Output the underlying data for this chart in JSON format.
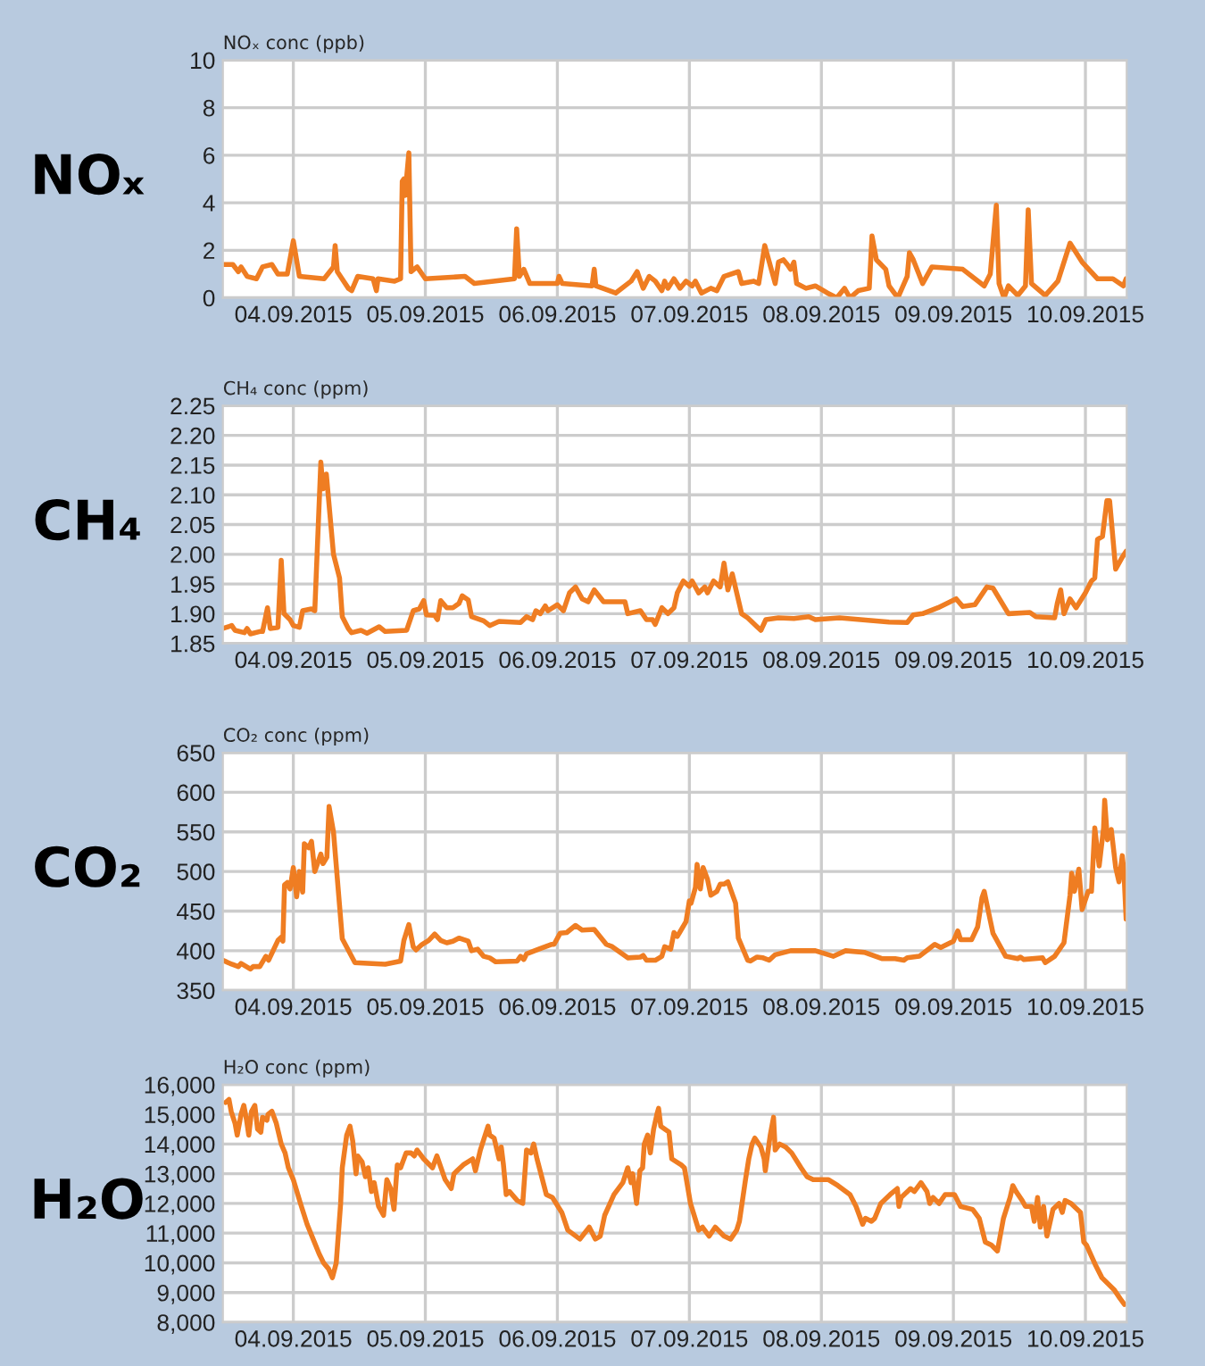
{
  "chart_data": [
    {
      "type": "line",
      "title": "NOₓ",
      "ylabel": "NOₓ conc (ppb)",
      "grid": true,
      "color": "#ef7d22",
      "x": [
        "2015-09-03T11:12",
        "2015-09-03T13:00",
        "2015-09-03T14:00",
        "2015-09-03T14:30",
        "2015-09-03T15:36",
        "2015-09-03T17:18",
        "2015-09-03T18:24",
        "2015-09-03T20:06",
        "2015-09-03T21:12",
        "2015-09-03T22:54",
        "2015-09-04T00:00",
        "2015-09-04T01:06",
        "2015-09-04T05:36",
        "2015-09-04T07:18",
        "2015-09-04T07:36",
        "2015-09-04T08:00",
        "2015-09-04T10:00",
        "2015-09-04T10:36",
        "2015-09-04T11:42",
        "2015-09-04T14:30",
        "2015-09-04T15:06",
        "2015-09-04T15:24",
        "2015-09-04T18:24",
        "2015-09-04T19:30",
        "2015-09-04T19:48",
        "2015-09-04T20:06",
        "2015-09-04T20:18",
        "2015-09-04T21:00",
        "2015-09-04T21:24",
        "2015-09-04T22:30",
        "2015-09-05T00:00",
        "2015-09-05T07:12",
        "2015-09-05T08:54",
        "2015-09-05T16:12",
        "2015-09-05T16:36",
        "2015-09-05T17:06",
        "2015-09-05T17:54",
        "2015-09-05T19:00",
        "2015-09-06T00:00",
        "2015-09-06T00:18",
        "2015-09-06T00:54",
        "2015-09-06T06:18",
        "2015-09-06T06:42",
        "2015-09-06T07:00",
        "2015-09-06T10:36",
        "2015-09-06T13:24",
        "2015-09-06T14:30",
        "2015-09-06T15:36",
        "2015-09-06T16:42",
        "2015-09-06T17:48",
        "2015-09-06T19:00",
        "2015-09-06T19:30",
        "2015-09-06T20:06",
        "2015-09-06T21:12",
        "2015-09-06T22:18",
        "2015-09-06T23:24",
        "2015-09-07T00:30",
        "2015-09-07T01:06",
        "2015-09-07T02:12",
        "2015-09-07T03:54",
        "2015-09-07T05:00",
        "2015-09-07T06:18",
        "2015-09-07T08:54",
        "2015-09-07T09:30",
        "2015-09-07T11:42",
        "2015-09-07T12:36",
        "2015-09-07T13:42",
        "2015-09-07T15:36",
        "2015-09-07T16:12",
        "2015-09-07T17:06",
        "2015-09-07T17:48",
        "2015-09-07T18:24",
        "2015-09-07T19:00",
        "2015-09-07T19:30",
        "2015-09-07T21:12",
        "2015-09-07T22:54",
        "2015-09-08T01:06",
        "2015-09-08T02:48",
        "2015-09-08T04:12",
        "2015-09-08T05:12",
        "2015-09-08T06:42",
        "2015-09-08T08:42",
        "2015-09-08T09:12",
        "2015-09-08T10:00",
        "2015-09-08T11:42",
        "2015-09-08T12:18",
        "2015-09-08T13:54",
        "2015-09-08T15:36",
        "2015-09-08T16:00",
        "2015-09-08T16:42",
        "2015-09-08T18:24",
        "2015-09-08T20:06",
        "2015-09-09T01:42",
        "2015-09-09T05:36",
        "2015-09-09T06:42",
        "2015-09-09T07:48",
        "2015-09-09T08:18",
        "2015-09-09T09:12",
        "2015-09-09T10:00",
        "2015-09-09T11:42",
        "2015-09-09T13:06",
        "2015-09-09T13:36",
        "2015-09-09T14:12",
        "2015-09-09T16:42",
        "2015-09-09T19:00",
        "2015-09-09T21:12",
        "2015-09-09T23:24",
        "2015-09-10T02:12",
        "2015-09-10T05:00",
        "2015-09-10T06:54",
        "2015-09-10T07:24"
      ],
      "values": [
        1.4,
        1.4,
        1.1,
        1.3,
        0.9,
        0.8,
        1.3,
        1.4,
        1.0,
        1.0,
        2.4,
        0.9,
        0.8,
        1.3,
        2.2,
        1.1,
        0.4,
        0.3,
        0.9,
        0.8,
        0.3,
        0.8,
        0.7,
        0.8,
        4.9,
        5.0,
        4.3,
        6.1,
        1.1,
        1.3,
        0.8,
        0.9,
        0.6,
        0.8,
        2.9,
        0.9,
        1.2,
        0.6,
        0.6,
        0.9,
        0.6,
        0.5,
        1.2,
        0.5,
        0.2,
        0.7,
        1.1,
        0.4,
        0.9,
        0.7,
        0.3,
        0.7,
        0.4,
        0.8,
        0.4,
        0.7,
        0.5,
        0.7,
        0.2,
        0.4,
        0.3,
        0.9,
        1.1,
        0.6,
        0.7,
        0.6,
        2.2,
        0.6,
        1.5,
        1.6,
        1.4,
        1.2,
        1.5,
        0.6,
        0.4,
        0.5,
        0.2,
        0.0,
        0.4,
        0.0,
        0.3,
        0.4,
        2.6,
        1.6,
        1.2,
        0.5,
        0.0,
        0.9,
        1.9,
        1.6,
        0.6,
        1.3,
        1.2,
        0.5,
        1.0,
        3.9,
        0.6,
        0.0,
        0.5,
        0.1,
        0.5,
        3.7,
        0.6,
        0.1,
        0.7,
        2.3,
        1.5,
        0.8,
        0.8,
        0.5,
        0.8
      ],
      "xlim": [
        "2015-09-03T11:12",
        "2015-09-10T07:30"
      ],
      "xticks": [
        {
          "value": "2015-09-04",
          "label": "04.09.2015"
        },
        {
          "value": "2015-09-05",
          "label": "05.09.2015"
        },
        {
          "value": "2015-09-06",
          "label": "06.09.2015"
        },
        {
          "value": "2015-09-07",
          "label": "07.09.2015"
        },
        {
          "value": "2015-09-08",
          "label": "08.09.2015"
        },
        {
          "value": "2015-09-09",
          "label": "09.09.2015"
        },
        {
          "value": "2015-09-10",
          "label": "10.09.2015"
        }
      ],
      "ylim": [
        0,
        10
      ],
      "yticks": [
        0,
        2,
        4,
        6,
        8,
        10
      ]
    },
    {
      "type": "line",
      "title": "CH₄",
      "ylabel": "CH₄ conc (ppm)",
      "grid": true,
      "color": "#ef7d22",
      "x": [
        "2015-09-03T11:12",
        "2015-09-03T12:48",
        "2015-09-03T13:24",
        "2015-09-03T15:06",
        "2015-09-03T15:36",
        "2015-09-03T16:12",
        "2015-09-03T17:54",
        "2015-09-03T18:24",
        "2015-09-03T19:18",
        "2015-09-03T19:48",
        "2015-09-03T21:12",
        "2015-09-03T21:48",
        "2015-09-03T22:18",
        "2015-09-03T23:24",
        "2015-09-04T00:00",
        "2015-09-04T01:06",
        "2015-09-04T01:42",
        "2015-09-04T03:18",
        "2015-09-04T03:54",
        "2015-09-04T05:00",
        "2015-09-04T05:24",
        "2015-09-04T06:00",
        "2015-09-04T07:18",
        "2015-09-04T08:24",
        "2015-09-04T08:54",
        "2015-09-04T10:00",
        "2015-09-04T10:36",
        "2015-09-04T12:18",
        "2015-09-04T13:24",
        "2015-09-04T15:36",
        "2015-09-04T16:42",
        "2015-09-04T20:36",
        "2015-09-04T21:48",
        "2015-09-04T22:54",
        "2015-09-04T23:42",
        "2015-09-05T00:12",
        "2015-09-05T01:42",
        "2015-09-05T02:12",
        "2015-09-05T02:48",
        "2015-09-05T03:54",
        "2015-09-05T05:00",
        "2015-09-05T06:06",
        "2015-09-05T06:42",
        "2015-09-05T07:48",
        "2015-09-05T08:24",
        "2015-09-05T10:36",
        "2015-09-05T11:42",
        "2015-09-05T13:24",
        "2015-09-05T17:18",
        "2015-09-05T18:24",
        "2015-09-05T19:30",
        "2015-09-05T20:06",
        "2015-09-05T20:54",
        "2015-09-05T21:48",
        "2015-09-05T22:18",
        "2015-09-06T00:00",
        "2015-09-06T01:06",
        "2015-09-06T02:12",
        "2015-09-06T03:18",
        "2015-09-06T04:30",
        "2015-09-06T05:36",
        "2015-09-06T06:42",
        "2015-09-06T08:24",
        "2015-09-06T12:18",
        "2015-09-06T12:48",
        "2015-09-06T15:06",
        "2015-09-06T16:12",
        "2015-09-06T17:18",
        "2015-09-06T17:48",
        "2015-09-06T19:00",
        "2015-09-06T20:06",
        "2015-09-06T21:12",
        "2015-09-06T21:48",
        "2015-09-06T22:54",
        "2015-09-07T00:00",
        "2015-09-07T00:30",
        "2015-09-07T01:42",
        "2015-09-07T02:48",
        "2015-09-07T03:18",
        "2015-09-07T04:24",
        "2015-09-07T05:36",
        "2015-09-07T06:18",
        "2015-09-07T07:00",
        "2015-09-07T07:48",
        "2015-09-07T09:30",
        "2015-09-07T10:36",
        "2015-09-07T12:18",
        "2015-09-07T13:00",
        "2015-09-07T13:54",
        "2015-09-07T16:12",
        "2015-09-07T19:00",
        "2015-09-07T21:42",
        "2015-09-07T22:54",
        "2015-09-08T03:18",
        "2015-09-08T12:18",
        "2015-09-08T15:36",
        "2015-09-08T16:42",
        "2015-09-08T18:24",
        "2015-09-08T21:12",
        "2015-09-09T00:30",
        "2015-09-09T01:42",
        "2015-09-09T03:54",
        "2015-09-09T06:06",
        "2015-09-09T07:12",
        "2015-09-09T10:00",
        "2015-09-09T13:54",
        "2015-09-09T15:00",
        "2015-09-09T18:24",
        "2015-09-09T18:54",
        "2015-09-09T19:30",
        "2015-09-09T20:06",
        "2015-09-09T21:12",
        "2015-09-09T22:18",
        "2015-09-10T00:00",
        "2015-09-10T01:06",
        "2015-09-10T01:42",
        "2015-09-10T02:12",
        "2015-09-10T03:06",
        "2015-09-10T03:54",
        "2015-09-10T04:24",
        "2015-09-10T05:30",
        "2015-09-10T06:42",
        "2015-09-10T07:24"
      ],
      "values": [
        1.875,
        1.88,
        1.872,
        1.868,
        1.875,
        1.866,
        1.87,
        1.87,
        1.91,
        1.875,
        1.877,
        1.99,
        1.9,
        1.89,
        1.88,
        1.877,
        1.905,
        1.908,
        1.905,
        2.155,
        2.11,
        2.135,
        2.0,
        1.96,
        1.895,
        1.875,
        1.868,
        1.872,
        1.867,
        1.878,
        1.87,
        1.872,
        1.905,
        1.908,
        1.922,
        1.898,
        1.897,
        1.89,
        1.922,
        1.91,
        1.91,
        1.917,
        1.93,
        1.923,
        1.895,
        1.888,
        1.88,
        1.887,
        1.885,
        1.895,
        1.89,
        1.905,
        1.9,
        1.913,
        1.905,
        1.915,
        1.905,
        1.935,
        1.945,
        1.925,
        1.92,
        1.94,
        1.92,
        1.92,
        1.9,
        1.905,
        1.89,
        1.89,
        1.882,
        1.91,
        1.9,
        1.91,
        1.935,
        1.955,
        1.946,
        1.955,
        1.935,
        1.945,
        1.935,
        1.955,
        1.945,
        1.985,
        1.94,
        1.967,
        1.9,
        1.893,
        1.878,
        1.872,
        1.89,
        1.893,
        1.892,
        1.895,
        1.89,
        1.893,
        1.886,
        1.885,
        1.898,
        1.9,
        1.91,
        1.925,
        1.912,
        1.915,
        1.945,
        1.943,
        1.9,
        1.902,
        1.895,
        1.893,
        1.918,
        1.94,
        1.9,
        1.925,
        1.91,
        1.935,
        1.955,
        1.96,
        2.025,
        2.03,
        2.09,
        2.09,
        1.975,
        1.995,
        2.005
      ],
      "xlim": [
        "2015-09-03T11:12",
        "2015-09-10T07:30"
      ],
      "xticks": [
        {
          "value": "2015-09-04",
          "label": "04.09.2015"
        },
        {
          "value": "2015-09-05",
          "label": "05.09.2015"
        },
        {
          "value": "2015-09-06",
          "label": "06.09.2015"
        },
        {
          "value": "2015-09-07",
          "label": "07.09.2015"
        },
        {
          "value": "2015-09-08",
          "label": "08.09.2015"
        },
        {
          "value": "2015-09-09",
          "label": "09.09.2015"
        },
        {
          "value": "2015-09-10",
          "label": "10.09.2015"
        }
      ],
      "ylim": [
        1.85,
        2.25
      ],
      "yticks": [
        {
          "value": 1.85,
          "label": "1.85"
        },
        {
          "value": 1.9,
          "label": "1.90"
        },
        {
          "value": 1.95,
          "label": "1.95"
        },
        {
          "value": 2.0,
          "label": "2.00"
        },
        {
          "value": 2.05,
          "label": "2.05"
        },
        {
          "value": 2.1,
          "label": "2.10"
        },
        {
          "value": 2.15,
          "label": "2.15"
        },
        {
          "value": 2.2,
          "label": "2.20"
        },
        {
          "value": 2.25,
          "label": "2.25"
        }
      ]
    },
    {
      "type": "line",
      "title": "CO₂",
      "ylabel": "CO₂ conc (ppm)",
      "grid": true,
      "color": "#ef7d22",
      "x": [
        "2015-09-03T11:12",
        "2015-09-03T12:48",
        "2015-09-03T14:00",
        "2015-09-03T14:30",
        "2015-09-03T16:12",
        "2015-09-03T16:42",
        "2015-09-03T17:54",
        "2015-09-03T19:00",
        "2015-09-03T19:30",
        "2015-09-03T21:12",
        "2015-09-03T21:48",
        "2015-09-03T22:06",
        "2015-09-03T22:24",
        "2015-09-03T22:54",
        "2015-09-03T23:24",
        "2015-09-04T00:00",
        "2015-09-04T00:36",
        "2015-09-04T01:06",
        "2015-09-04T01:42",
        "2015-09-04T02:00",
        "2015-09-04T02:48",
        "2015-09-04T03:18",
        "2015-09-04T03:54",
        "2015-09-04T05:00",
        "2015-09-04T05:24",
        "2015-09-04T06:06",
        "2015-09-04T06:30",
        "2015-09-04T07:18",
        "2015-09-04T08:54",
        "2015-09-04T11:12",
        "2015-09-04T16:42",
        "2015-09-04T19:30",
        "2015-09-04T20:06",
        "2015-09-04T21:00",
        "2015-09-04T21:48",
        "2015-09-04T22:18",
        "2015-09-04T23:24",
        "2015-09-05T00:36",
        "2015-09-05T01:42",
        "2015-09-05T02:48",
        "2015-09-05T03:54",
        "2015-09-05T05:00",
        "2015-09-05T06:06",
        "2015-09-05T07:48",
        "2015-09-05T08:24",
        "2015-09-05T09:30",
        "2015-09-05T10:36",
        "2015-09-05T11:42",
        "2015-09-05T12:48",
        "2015-09-05T16:42",
        "2015-09-05T17:18",
        "2015-09-05T17:54",
        "2015-09-05T18:24",
        "2015-09-05T20:36",
        "2015-09-05T22:54",
        "2015-09-05T23:24",
        "2015-09-06T00:30",
        "2015-09-06T01:42",
        "2015-09-06T03:18",
        "2015-09-06T04:30",
        "2015-09-06T06:42",
        "2015-09-06T08:54",
        "2015-09-06T10:00",
        "2015-09-06T12:48",
        "2015-09-06T15:06",
        "2015-09-06T15:36",
        "2015-09-06T16:12",
        "2015-09-06T17:48",
        "2015-09-06T19:00",
        "2015-09-06T19:30",
        "2015-09-06T20:36",
        "2015-09-06T21:12",
        "2015-09-06T21:48",
        "2015-09-06T23:24",
        "2015-09-07T00:00",
        "2015-09-07T00:18",
        "2015-09-07T01:06",
        "2015-09-07T01:24",
        "2015-09-07T02:00",
        "2015-09-07T02:30",
        "2015-09-07T03:18",
        "2015-09-07T03:54",
        "2015-09-07T05:00",
        "2015-09-07T05:36",
        "2015-09-07T06:18",
        "2015-09-07T07:00",
        "2015-09-07T08:24",
        "2015-09-07T08:54",
        "2015-09-07T10:36",
        "2015-09-07T11:06",
        "2015-09-07T12:18",
        "2015-09-07T13:24",
        "2015-09-07T14:30",
        "2015-09-07T15:36",
        "2015-09-07T18:24",
        "2015-09-07T22:54",
        "2015-09-08T02:12",
        "2015-09-08T04:24",
        "2015-09-08T07:48",
        "2015-09-08T11:06",
        "2015-09-08T13:24",
        "2015-09-08T15:00",
        "2015-09-08T15:36",
        "2015-09-08T17:48",
        "2015-09-08T20:36",
        "2015-09-08T21:42",
        "2015-09-09T00:00",
        "2015-09-09T00:48",
        "2015-09-09T01:18",
        "2015-09-09T03:18",
        "2015-09-09T04:24",
        "2015-09-09T05:12",
        "2015-09-09T05:36",
        "2015-09-09T06:06",
        "2015-09-09T07:12",
        "2015-09-09T09:30",
        "2015-09-09T11:42",
        "2015-09-09T12:12",
        "2015-09-09T12:48",
        "2015-09-09T16:12",
        "2015-09-09T16:42",
        "2015-09-09T18:24",
        "2015-09-09T20:06",
        "2015-09-09T21:12",
        "2015-09-09T21:30",
        "2015-09-09T22:00",
        "2015-09-09T22:48",
        "2015-09-09T23:24",
        "2015-09-10T00:30",
        "2015-09-10T01:06",
        "2015-09-10T01:42",
        "2015-09-10T02:30",
        "2015-09-10T03:18",
        "2015-09-10T03:30",
        "2015-09-10T04:00",
        "2015-09-10T04:42",
        "2015-09-10T05:30",
        "2015-09-10T06:06",
        "2015-09-10T06:42",
        "2015-09-10T07:00",
        "2015-09-10T07:24"
      ],
      "values": [
        388,
        383,
        380,
        384,
        377,
        380,
        380,
        393,
        388,
        413,
        417,
        412,
        483,
        486,
        478,
        505,
        468,
        500,
        474,
        535,
        530,
        538,
        500,
        522,
        510,
        518,
        582,
        550,
        415,
        385,
        383,
        387,
        413,
        433,
        405,
        401,
        408,
        413,
        421,
        413,
        410,
        412,
        416,
        412,
        400,
        402,
        393,
        391,
        386,
        387,
        393,
        389,
        396,
        402,
        408,
        408,
        422,
        423,
        432,
        426,
        427,
        408,
        405,
        391,
        392,
        394,
        388,
        388,
        393,
        405,
        402,
        423,
        418,
        437,
        463,
        460,
        480,
        509,
        478,
        505,
        490,
        470,
        475,
        484,
        484,
        487,
        460,
        416,
        388,
        387,
        392,
        391,
        388,
        395,
        400,
        400,
        393,
        400,
        398,
        390,
        390,
        388,
        391,
        393,
        408,
        404,
        412,
        425,
        414,
        414,
        430,
        467,
        475,
        458,
        422,
        393,
        390,
        392,
        389,
        391,
        385,
        393,
        410,
        470,
        498,
        475,
        503,
        452,
        475,
        475,
        555,
        507,
        555,
        590,
        540,
        553,
        505,
        487,
        520,
        500,
        440
      ],
      "xlim": [
        "2015-09-03T11:12",
        "2015-09-10T07:30"
      ],
      "xticks": [
        {
          "value": "2015-09-04",
          "label": "04.09.2015"
        },
        {
          "value": "2015-09-05",
          "label": "05.09.2015"
        },
        {
          "value": "2015-09-06",
          "label": "06.09.2015"
        },
        {
          "value": "2015-09-07",
          "label": "07.09.2015"
        },
        {
          "value": "2015-09-08",
          "label": "08.09.2015"
        },
        {
          "value": "2015-09-09",
          "label": "09.09.2015"
        },
        {
          "value": "2015-09-10",
          "label": "10.09.2015"
        }
      ],
      "ylim": [
        350,
        650
      ],
      "yticks": [
        350,
        400,
        450,
        500,
        550,
        600,
        650
      ]
    },
    {
      "type": "line",
      "title": "H₂O",
      "ylabel": "H₂O conc (ppm)",
      "grid": true,
      "color": "#ef7d22",
      "x": [
        "2015-09-03T11:42",
        "2015-09-03T12:18",
        "2015-09-03T12:42",
        "2015-09-03T13:24",
        "2015-09-03T13:48",
        "2015-09-03T14:30",
        "2015-09-03T15:00",
        "2015-09-03T15:30",
        "2015-09-03T15:54",
        "2015-09-03T16:24",
        "2015-09-03T17:00",
        "2015-09-03T17:30",
        "2015-09-03T18:06",
        "2015-09-03T18:24",
        "2015-09-03T19:12",
        "2015-09-03T19:24",
        "2015-09-03T20:06",
        "2015-09-03T20:54",
        "2015-09-03T21:48",
        "2015-09-03T22:30",
        "2015-09-03T23:06",
        "2015-09-04T00:00",
        "2015-09-04T01:18",
        "2015-09-04T02:30",
        "2015-09-04T03:36",
        "2015-09-04T04:42",
        "2015-09-04T05:30",
        "2015-09-04T06:24",
        "2015-09-04T07:06",
        "2015-09-04T07:48",
        "2015-09-04T08:36",
        "2015-09-04T08:54",
        "2015-09-04T09:42",
        "2015-09-04T10:18",
        "2015-09-04T10:48",
        "2015-09-04T11:24",
        "2015-09-04T11:42",
        "2015-09-04T12:30",
        "2015-09-04T13:06",
        "2015-09-04T13:36",
        "2015-09-04T14:12",
        "2015-09-04T14:42",
        "2015-09-04T15:30",
        "2015-09-04T16:24",
        "2015-09-04T17:00",
        "2015-09-04T17:42",
        "2015-09-04T18:18",
        "2015-09-04T18:54",
        "2015-09-04T19:30",
        "2015-09-04T20:30",
        "2015-09-04T21:24",
        "2015-09-04T22:00",
        "2015-09-04T22:30",
        "2015-09-04T23:42",
        "2015-09-05T01:18",
        "2015-09-05T02:06",
        "2015-09-05T03:36",
        "2015-09-05T04:42",
        "2015-09-05T05:12",
        "2015-09-05T06:54",
        "2015-09-05T08:36",
        "2015-09-05T09:06",
        "2015-09-05T10:00",
        "2015-09-05T11:24",
        "2015-09-05T11:42",
        "2015-09-05T12:30",
        "2015-09-05T13:24",
        "2015-09-05T13:48",
        "2015-09-05T14:12",
        "2015-09-05T14:42",
        "2015-09-05T15:18",
        "2015-09-05T16:42",
        "2015-09-05T17:42",
        "2015-09-05T18:24",
        "2015-09-05T19:12",
        "2015-09-05T19:42",
        "2015-09-05T20:18",
        "2015-09-05T22:00",
        "2015-09-05T23:06",
        "2015-09-06T00:48",
        "2015-09-06T01:54",
        "2015-09-06T04:06",
        "2015-09-06T05:48",
        "2015-09-06T06:54",
        "2015-09-06T07:48",
        "2015-09-06T08:36",
        "2015-09-06T10:18",
        "2015-09-06T11:54",
        "2015-09-06T12:48",
        "2015-09-06T13:24",
        "2015-09-06T13:42",
        "2015-09-06T14:24",
        "2015-09-06T15:00",
        "2015-09-06T15:30",
        "2015-09-06T15:48",
        "2015-09-06T16:24",
        "2015-09-06T16:54",
        "2015-09-06T17:30",
        "2015-09-06T18:06",
        "2015-09-06T18:24",
        "2015-09-06T18:48",
        "2015-09-06T20:18",
        "2015-09-06T20:48",
        "2015-09-06T22:30",
        "2015-09-06T23:06",
        "2015-09-07T00:12",
        "2015-09-07T01:42",
        "2015-09-07T02:24",
        "2015-09-07T03:36",
        "2015-09-07T04:42",
        "2015-09-07T06:18",
        "2015-09-07T07:30",
        "2015-09-07T08:36",
        "2015-09-07T09:06",
        "2015-09-07T10:12",
        "2015-09-07T10:48",
        "2015-09-07T11:24",
        "2015-09-07T11:54",
        "2015-09-07T13:00",
        "2015-09-07T13:36",
        "2015-09-07T13:48",
        "2015-09-07T14:42",
        "2015-09-07T15:18",
        "2015-09-07T15:36",
        "2015-09-07T16:24",
        "2015-09-07T17:30",
        "2015-09-07T18:36",
        "2015-09-07T20:18",
        "2015-09-07T21:24",
        "2015-09-07T22:30",
        "2015-09-08T01:18",
        "2015-09-08T03:00",
        "2015-09-08T05:12",
        "2015-09-08T06:18",
        "2015-09-08T07:30",
        "2015-09-08T08:00",
        "2015-09-08T09:06",
        "2015-09-08T09:42",
        "2015-09-08T10:48",
        "2015-09-08T12:30",
        "2015-09-08T13:48",
        "2015-09-08T14:06",
        "2015-09-08T14:30",
        "2015-09-08T16:12",
        "2015-09-08T16:54",
        "2015-09-08T18:06",
        "2015-09-08T19:12",
        "2015-09-08T19:42",
        "2015-09-08T20:18",
        "2015-09-08T21:24",
        "2015-09-08T22:30",
        "2015-09-09T00:12",
        "2015-09-09T01:18",
        "2015-09-09T03:30",
        "2015-09-09T04:42",
        "2015-09-09T05:48",
        "2015-09-09T06:54",
        "2015-09-09T08:00",
        "2015-09-09T09:06",
        "2015-09-09T10:18",
        "2015-09-09T10:48",
        "2015-09-09T11:24",
        "2015-09-09T12:30",
        "2015-09-09T13:06",
        "2015-09-09T14:12",
        "2015-09-09T14:42",
        "2015-09-09T15:18",
        "2015-09-09T15:48",
        "2015-09-09T16:24",
        "2015-09-09T17:00",
        "2015-09-09T18:06",
        "2015-09-09T19:12",
        "2015-09-09T19:48",
        "2015-09-09T20:18",
        "2015-09-09T21:24",
        "2015-09-09T23:06",
        "2015-09-09T23:42",
        "2015-09-10T00:12",
        "2015-09-10T01:54",
        "2015-09-10T03:00",
        "2015-09-10T05:12",
        "2015-09-10T06:18",
        "2015-09-10T07:06"
      ],
      "values": [
        15400,
        15500,
        15100,
        14700,
        14300,
        15000,
        15300,
        14800,
        14300,
        15100,
        15300,
        14500,
        14400,
        14900,
        14800,
        15000,
        15100,
        14700,
        14000,
        13700,
        13200,
        12800,
        12000,
        11300,
        10800,
        10300,
        10000,
        9800,
        9500,
        10000,
        12000,
        13200,
        14300,
        14600,
        14100,
        13000,
        13600,
        13400,
        12900,
        13200,
        12400,
        12700,
        11900,
        11600,
        12800,
        12500,
        11800,
        13300,
        13200,
        13700,
        13700,
        13600,
        13800,
        13500,
        13200,
        13600,
        12800,
        12500,
        13000,
        13300,
        13500,
        13100,
        13800,
        14600,
        14300,
        14200,
        13500,
        13900,
        13300,
        12300,
        12400,
        12100,
        12000,
        13800,
        13700,
        14000,
        13500,
        12300,
        12200,
        11700,
        11100,
        10800,
        11200,
        10800,
        10900,
        11600,
        12300,
        12700,
        13200,
        12700,
        13000,
        12000,
        13100,
        13200,
        14000,
        14300,
        13700,
        14500,
        15000,
        15200,
        14600,
        14400,
        13500,
        13300,
        13200,
        12000,
        11100,
        11200,
        10900,
        11200,
        10900,
        10800,
        11100,
        11400,
        12800,
        13500,
        14000,
        14200,
        13900,
        13500,
        13100,
        14300,
        14900,
        13800,
        14000,
        13900,
        13700,
        13200,
        12900,
        12800,
        12800,
        12600,
        12300,
        11900,
        11300,
        11500,
        11400,
        11500,
        12000,
        12300,
        12500,
        11900,
        12200,
        12500,
        12400,
        12700,
        12400,
        12000,
        12200,
        12000,
        12300,
        12300,
        11900,
        11800,
        11500,
        10700,
        10600,
        10400,
        11500,
        12200,
        12600,
        12400,
        12100,
        11900,
        11900,
        11400,
        12200,
        11200,
        11900,
        10900,
        11800,
        12000,
        11700,
        12100,
        12000,
        11700,
        10700,
        10600,
        9900,
        9500,
        9100,
        8800,
        8600
      ],
      "xlim": [
        "2015-09-03T11:12",
        "2015-09-10T07:30"
      ],
      "xticks": [
        {
          "value": "2015-09-04",
          "label": "04.09.2015"
        },
        {
          "value": "2015-09-05",
          "label": "05.09.2015"
        },
        {
          "value": "2015-09-06",
          "label": "06.09.2015"
        },
        {
          "value": "2015-09-07",
          "label": "07.09.2015"
        },
        {
          "value": "2015-09-08",
          "label": "08.09.2015"
        },
        {
          "value": "2015-09-09",
          "label": "09.09.2015"
        },
        {
          "value": "2015-09-10",
          "label": "10.09.2015"
        }
      ],
      "ylim": [
        8000,
        16000
      ],
      "yticks": [
        {
          "value": 8000,
          "label": "8,000"
        },
        {
          "value": 9000,
          "label": "9,000"
        },
        {
          "value": 10000,
          "label": "10,000"
        },
        {
          "value": 11000,
          "label": "11,000"
        },
        {
          "value": 12000,
          "label": "12,000"
        },
        {
          "value": 13000,
          "label": "13,000"
        },
        {
          "value": 14000,
          "label": "14,000"
        },
        {
          "value": 15000,
          "label": "15,000"
        },
        {
          "value": 16000,
          "label": "16,000"
        }
      ]
    }
  ]
}
